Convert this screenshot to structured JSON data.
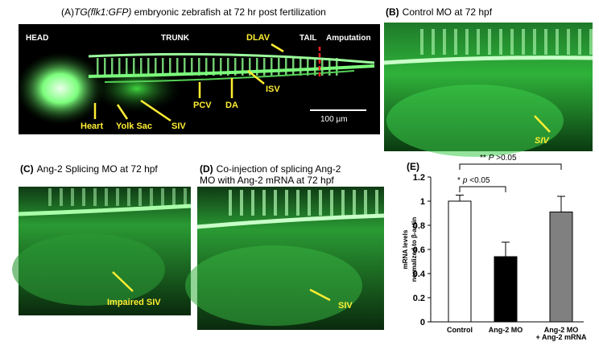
{
  "panel_a": {
    "label": "(A)",
    "title_italic": "TG(flk1:GFP)",
    "title_rest": " embryonic zebrafish at 72 hr post fertilization",
    "annotations": [
      "HEAD",
      "TRUNK",
      "DLAV",
      "TAIL",
      "Amputation",
      "Heart",
      "Yolk Sac",
      "SIV",
      "PCV",
      "DA",
      "ISV"
    ],
    "scale_bar": "100 µm"
  },
  "panel_b": {
    "label": "(B)",
    "title": "Control MO at 72 hpf",
    "annotation": "SIV"
  },
  "panel_c": {
    "label": "(C)",
    "title": "Ang-2 Splicing MO at 72 hpf",
    "annotation": "Impaired SIV"
  },
  "panel_d": {
    "label": "(D)",
    "title_lines": [
      "Co-injection of  splicing Ang-2",
      "MO with Ang-2 mRNA at 72 hpf"
    ],
    "annotation": "SIV"
  },
  "panel_e": {
    "label": "(E)"
  },
  "chart_data": {
    "type": "bar",
    "categories": [
      "Control",
      "Ang-2 MO",
      [
        "Ang-2 MO",
        "+ Ang-2 mRNA"
      ]
    ],
    "values": [
      1.0,
      0.54,
      0.91
    ],
    "errors": [
      0.05,
      0.12,
      0.13
    ],
    "colors": [
      "#ffffff",
      "#000000",
      "#808080"
    ],
    "ylabel_lines": [
      "mRNA  levels",
      "normalized to β-actin"
    ],
    "ylim": [
      0,
      1.2
    ],
    "yticks": [
      0,
      0.2,
      0.4,
      0.6,
      0.8,
      1,
      1.2
    ],
    "significance": [
      {
        "stars": "**",
        "p": "P",
        "rest": " >0.05"
      },
      {
        "stars": "*",
        "p": "p",
        "rest": " <0.05"
      }
    ]
  }
}
